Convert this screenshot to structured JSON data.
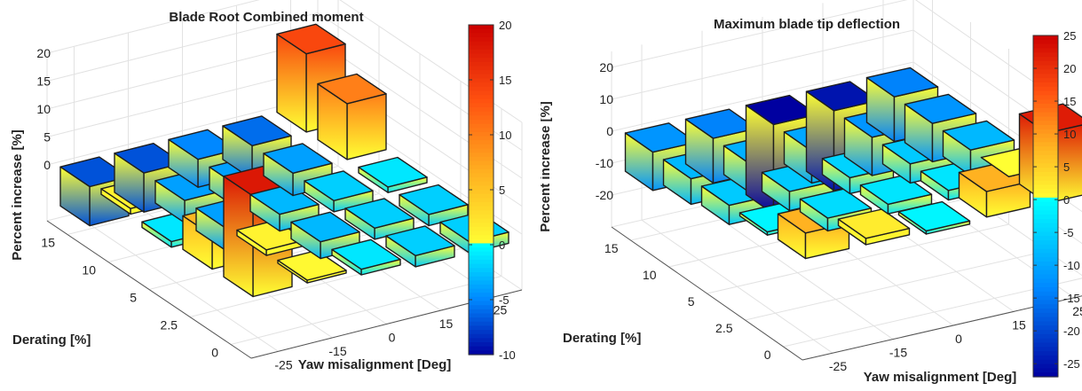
{
  "chart_data": [
    {
      "type": "bar3d",
      "title": "Blade Root Combined moment",
      "xlabel": "Yaw misalignment [Deg]",
      "ylabel": "Derating [%]",
      "zlabel": "Percent increase [%]",
      "yaw_ticks": [
        "-25",
        "-15",
        "0",
        "15",
        "25"
      ],
      "derating_ticks": [
        "0",
        "2.5",
        "5",
        "10",
        "15"
      ],
      "z_ticks": [
        "0",
        "5",
        "10",
        "15",
        "20"
      ],
      "zlim": [
        -10,
        20
      ],
      "colorbar": {
        "range": [
          -10,
          20
        ],
        "ticks": [
          "20",
          "15",
          "10",
          "5",
          "0",
          "-5",
          "-10"
        ]
      },
      "grid": true,
      "values": [
        [
          18,
          0.5,
          -1,
          -2,
          -2
        ],
        [
          6,
          1,
          -3,
          -2,
          -2
        ],
        [
          -1,
          -4,
          -3,
          -2,
          -1
        ],
        [
          1,
          -4,
          -4,
          -4,
          10
        ],
        [
          -7,
          -7,
          -5,
          -6,
          14
        ]
      ]
    },
    {
      "type": "bar3d",
      "title": "Maximum blade tip deflection",
      "xlabel": "Yaw misalignment [Deg]",
      "ylabel": "Derating [%]",
      "zlabel": "Percent increase [%]",
      "yaw_ticks": [
        "-25",
        "-15",
        "0",
        "15",
        "25"
      ],
      "derating_ticks": [
        "0",
        "2.5",
        "5",
        "10",
        "15"
      ],
      "z_ticks": [
        "-20",
        "-10",
        "0",
        "10",
        "20"
      ],
      "zlim": [
        -30,
        25
      ],
      "colorbar": {
        "range": [
          -27,
          25
        ],
        "ticks": [
          "25",
          "20",
          "15",
          "10",
          "5",
          "0",
          "-5",
          "-10",
          "-15",
          "-20",
          "-25"
        ]
      },
      "grid": true,
      "values": [
        [
          8,
          2,
          -1,
          8,
          22
        ],
        [
          -1,
          -4,
          -3,
          -3,
          0
        ],
        [
          -6,
          -6,
          -5,
          -6,
          -8
        ],
        [
          -8,
          -9,
          -10,
          -12,
          -12
        ],
        [
          -12,
          -14,
          -28,
          -25,
          -14
        ]
      ]
    }
  ]
}
